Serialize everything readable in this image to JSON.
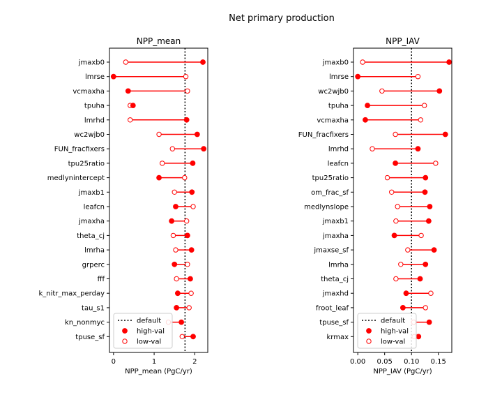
{
  "figure": {
    "title": "Net primary production"
  },
  "chart_data": [
    {
      "type": "dumbbell",
      "title": "NPP_mean",
      "xlabel": "NPP_mean (PgC/yr)",
      "ylabel": "",
      "xlim": [
        -0.1,
        2.32
      ],
      "xticks": [
        0,
        1,
        2
      ],
      "xtick_labels": [
        "0",
        "1",
        "2"
      ],
      "default": 1.76,
      "categories": [
        "jmaxb0",
        "lmrse",
        "vcmaxha",
        "tpuha",
        "lmrhd",
        "wc2wjb0",
        "FUN_fracfixers",
        "tpu25ratio",
        "medlynintercept",
        "jmaxb1",
        "leafcn",
        "jmaxha",
        "theta_cj",
        "lmrha",
        "grperc",
        "fff",
        "k_nitr_max_perday",
        "tau_s1",
        "kn_nonmyc",
        "tpuse_sf"
      ],
      "series": [
        {
          "name": "high-val",
          "marker": "filled",
          "values": [
            2.2,
            0.0,
            0.36,
            0.48,
            1.8,
            2.06,
            2.22,
            1.95,
            1.12,
            1.93,
            1.53,
            1.43,
            1.82,
            1.92,
            1.5,
            1.89,
            1.58,
            1.55,
            1.67,
            1.96
          ]
        },
        {
          "name": "low-val",
          "marker": "open",
          "values": [
            0.3,
            1.78,
            1.82,
            0.41,
            0.41,
            1.12,
            1.45,
            1.2,
            1.75,
            1.5,
            1.96,
            1.8,
            1.47,
            1.53,
            1.82,
            1.55,
            1.91,
            1.86,
            1.35,
            1.69
          ]
        }
      ],
      "legend": {
        "position": "lower-left",
        "entries": [
          "default",
          "high-val",
          "low-val"
        ]
      },
      "grid": false
    },
    {
      "type": "dumbbell",
      "title": "NPP_IAV",
      "xlabel": "NPP_IAV (PgC/yr)",
      "ylabel": "",
      "xlim": [
        -0.008,
        0.175
      ],
      "xticks": [
        0.0,
        0.05,
        0.1,
        0.15
      ],
      "xtick_labels": [
        "0.00",
        "0.05",
        "0.10",
        "0.15"
      ],
      "default": 0.1,
      "categories": [
        "jmaxb0",
        "lmrse",
        "wc2wjb0",
        "tpuha",
        "vcmaxha",
        "FUN_fracfixers",
        "lmrhd",
        "leafcn",
        "tpu25ratio",
        "om_frac_sf",
        "medlynslope",
        "jmaxb1",
        "jmaxha",
        "jmaxse_sf",
        "lmrha",
        "theta_cj",
        "jmaxhd",
        "froot_leaf",
        "tpuse_sf",
        "krmax"
      ],
      "series": [
        {
          "name": "high-val",
          "marker": "filled",
          "values": [
            0.17,
            0.0,
            0.152,
            0.018,
            0.014,
            0.163,
            0.112,
            0.07,
            0.126,
            0.125,
            0.134,
            0.132,
            0.068,
            0.142,
            0.126,
            0.116,
            0.09,
            0.084,
            0.133,
            0.113
          ]
        },
        {
          "name": "low-val",
          "marker": "open",
          "values": [
            0.009,
            0.112,
            0.045,
            0.124,
            0.117,
            0.07,
            0.027,
            0.145,
            0.055,
            0.063,
            0.074,
            0.071,
            0.118,
            0.093,
            0.08,
            0.071,
            0.136,
            0.126,
            0.104,
            0.105
          ]
        }
      ],
      "legend": {
        "position": "lower-left",
        "entries": [
          "default",
          "high-val",
          "low-val"
        ]
      },
      "grid": false
    }
  ]
}
